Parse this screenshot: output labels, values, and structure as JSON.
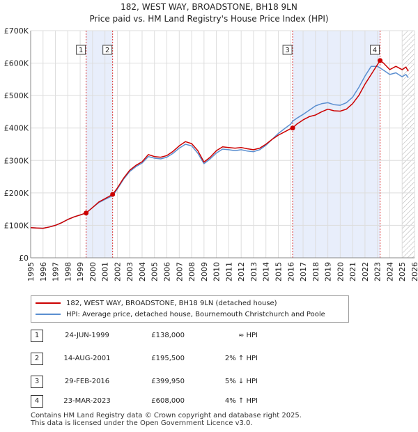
{
  "chart_data": {
    "type": "line",
    "title": "182, WEST WAY, BROADSTONE, BH18 9LN",
    "subtitle": "Price paid vs. HM Land Registry's House Price Index (HPI)",
    "xlabel": "",
    "ylabel": "",
    "xlim": [
      1995,
      2026
    ],
    "ylim": [
      0,
      700000
    ],
    "x_ticks": [
      "1995",
      "1996",
      "1997",
      "1998",
      "1999",
      "2000",
      "2001",
      "2002",
      "2003",
      "2004",
      "2005",
      "2006",
      "2007",
      "2008",
      "2009",
      "2010",
      "2011",
      "2012",
      "2013",
      "2014",
      "2015",
      "2016",
      "2017",
      "2018",
      "2019",
      "2020",
      "2021",
      "2022",
      "2023",
      "2024",
      "2025",
      "2026"
    ],
    "y_ticks": [
      {
        "value": 0,
        "label": "£0"
      },
      {
        "value": 100000,
        "label": "£100K"
      },
      {
        "value": 200000,
        "label": "£200K"
      },
      {
        "value": 300000,
        "label": "£300K"
      },
      {
        "value": 400000,
        "label": "£400K"
      },
      {
        "value": 500000,
        "label": "£500K"
      },
      {
        "value": 600000,
        "label": "£600K"
      },
      {
        "value": 700000,
        "label": "£700K"
      }
    ],
    "colors": {
      "red": "#cc0000",
      "blue": "#5b8fd0",
      "grid": "#dddddd",
      "shade": "#e8eefb",
      "vline": "#dd3333"
    },
    "series": [
      {
        "name": "182, WEST WAY, BROADSTONE, BH18 9LN (detached house)",
        "color": "#cc0000",
        "points": [
          [
            1995.0,
            93000
          ],
          [
            1995.5,
            92000
          ],
          [
            1996.0,
            91000
          ],
          [
            1996.5,
            95000
          ],
          [
            1997.0,
            100000
          ],
          [
            1997.5,
            108000
          ],
          [
            1998.0,
            118000
          ],
          [
            1998.5,
            126000
          ],
          [
            1999.0,
            132000
          ],
          [
            1999.48,
            138000
          ],
          [
            2000.0,
            155000
          ],
          [
            2000.5,
            172000
          ],
          [
            2001.0,
            182000
          ],
          [
            2001.62,
            195500
          ],
          [
            2002.0,
            215000
          ],
          [
            2002.5,
            245000
          ],
          [
            2003.0,
            270000
          ],
          [
            2003.5,
            285000
          ],
          [
            2004.0,
            296000
          ],
          [
            2004.5,
            318000
          ],
          [
            2005.0,
            312000
          ],
          [
            2005.5,
            310000
          ],
          [
            2006.0,
            315000
          ],
          [
            2006.5,
            328000
          ],
          [
            2007.0,
            345000
          ],
          [
            2007.5,
            358000
          ],
          [
            2008.0,
            352000
          ],
          [
            2008.5,
            330000
          ],
          [
            2009.0,
            295000
          ],
          [
            2009.5,
            310000
          ],
          [
            2010.0,
            330000
          ],
          [
            2010.5,
            342000
          ],
          [
            2011.0,
            340000
          ],
          [
            2011.5,
            338000
          ],
          [
            2012.0,
            340000
          ],
          [
            2012.5,
            336000
          ],
          [
            2013.0,
            333000
          ],
          [
            2013.5,
            338000
          ],
          [
            2014.0,
            350000
          ],
          [
            2014.5,
            365000
          ],
          [
            2015.0,
            378000
          ],
          [
            2015.5,
            388000
          ],
          [
            2016.0,
            398000
          ],
          [
            2016.16,
            399950
          ],
          [
            2016.5,
            412000
          ],
          [
            2017.0,
            425000
          ],
          [
            2017.5,
            435000
          ],
          [
            2018.0,
            440000
          ],
          [
            2018.5,
            450000
          ],
          [
            2019.0,
            458000
          ],
          [
            2019.5,
            453000
          ],
          [
            2020.0,
            452000
          ],
          [
            2020.5,
            458000
          ],
          [
            2021.0,
            475000
          ],
          [
            2021.5,
            500000
          ],
          [
            2022.0,
            535000
          ],
          [
            2022.5,
            565000
          ],
          [
            2023.0,
            595000
          ],
          [
            2023.22,
            608000
          ],
          [
            2023.5,
            600000
          ],
          [
            2024.0,
            580000
          ],
          [
            2024.5,
            590000
          ],
          [
            2025.0,
            580000
          ],
          [
            2025.3,
            588000
          ],
          [
            2025.5,
            575000
          ]
        ]
      },
      {
        "name": "HPI: Average price, detached house, Bournemouth Christchurch and Poole",
        "color": "#5b8fd0",
        "points": [
          [
            1995.0,
            93000
          ],
          [
            1995.5,
            92000
          ],
          [
            1996.0,
            91000
          ],
          [
            1996.5,
            95000
          ],
          [
            1997.0,
            100000
          ],
          [
            1997.5,
            108000
          ],
          [
            1998.0,
            118000
          ],
          [
            1998.5,
            126000
          ],
          [
            1999.0,
            132000
          ],
          [
            1999.48,
            138000
          ],
          [
            2000.0,
            155000
          ],
          [
            2000.5,
            170000
          ],
          [
            2001.0,
            180000
          ],
          [
            2001.62,
            191000
          ],
          [
            2002.0,
            212000
          ],
          [
            2002.5,
            242000
          ],
          [
            2003.0,
            266000
          ],
          [
            2003.5,
            281000
          ],
          [
            2004.0,
            292000
          ],
          [
            2004.5,
            312000
          ],
          [
            2005.0,
            307000
          ],
          [
            2005.5,
            305000
          ],
          [
            2006.0,
            310000
          ],
          [
            2006.5,
            322000
          ],
          [
            2007.0,
            338000
          ],
          [
            2007.5,
            350000
          ],
          [
            2008.0,
            345000
          ],
          [
            2008.5,
            322000
          ],
          [
            2009.0,
            290000
          ],
          [
            2009.5,
            305000
          ],
          [
            2010.0,
            323000
          ],
          [
            2010.5,
            335000
          ],
          [
            2011.0,
            333000
          ],
          [
            2011.5,
            330000
          ],
          [
            2012.0,
            333000
          ],
          [
            2012.5,
            329000
          ],
          [
            2013.0,
            327000
          ],
          [
            2013.5,
            333000
          ],
          [
            2014.0,
            347000
          ],
          [
            2014.5,
            365000
          ],
          [
            2015.0,
            383000
          ],
          [
            2015.5,
            398000
          ],
          [
            2016.0,
            412000
          ],
          [
            2016.16,
            421000
          ],
          [
            2016.5,
            430000
          ],
          [
            2017.0,
            442000
          ],
          [
            2017.5,
            455000
          ],
          [
            2018.0,
            468000
          ],
          [
            2018.5,
            475000
          ],
          [
            2019.0,
            478000
          ],
          [
            2019.5,
            472000
          ],
          [
            2020.0,
            470000
          ],
          [
            2020.5,
            478000
          ],
          [
            2021.0,
            495000
          ],
          [
            2021.5,
            525000
          ],
          [
            2022.0,
            560000
          ],
          [
            2022.5,
            590000
          ],
          [
            2023.0,
            590000
          ],
          [
            2023.22,
            585000
          ],
          [
            2023.5,
            578000
          ],
          [
            2024.0,
            565000
          ],
          [
            2024.5,
            570000
          ],
          [
            2025.0,
            558000
          ],
          [
            2025.3,
            565000
          ],
          [
            2025.5,
            555000
          ]
        ]
      }
    ],
    "sales": [
      {
        "num": "1",
        "x": 1999.48,
        "price": 138000
      },
      {
        "num": "2",
        "x": 2001.62,
        "price": 195500
      },
      {
        "num": "3",
        "x": 2016.16,
        "price": 399950
      },
      {
        "num": "4",
        "x": 2023.22,
        "price": 608000
      }
    ],
    "shaded_ranges": [
      [
        1999.48,
        2001.62
      ],
      [
        2016.16,
        2023.22
      ]
    ],
    "hatch_from": 2025.0
  },
  "legend": {
    "red_label": "182, WEST WAY, BROADSTONE, BH18 9LN (detached house)",
    "blue_label": "HPI: Average price, detached house, Bournemouth Christchurch and Poole"
  },
  "sales_table": [
    {
      "num": "1",
      "date": "24-JUN-1999",
      "price": "£138,000",
      "rel": "≈ HPI"
    },
    {
      "num": "2",
      "date": "14-AUG-2001",
      "price": "£195,500",
      "rel": "2% ↑ HPI"
    },
    {
      "num": "3",
      "date": "29-FEB-2016",
      "price": "£399,950",
      "rel": "5% ↓ HPI"
    },
    {
      "num": "4",
      "date": "23-MAR-2023",
      "price": "£608,000",
      "rel": "4% ↑ HPI"
    }
  ],
  "footer": {
    "line1": "Contains HM Land Registry data © Crown copyright and database right 2025.",
    "line2": "This data is licensed under the Open Government Licence v3.0."
  }
}
